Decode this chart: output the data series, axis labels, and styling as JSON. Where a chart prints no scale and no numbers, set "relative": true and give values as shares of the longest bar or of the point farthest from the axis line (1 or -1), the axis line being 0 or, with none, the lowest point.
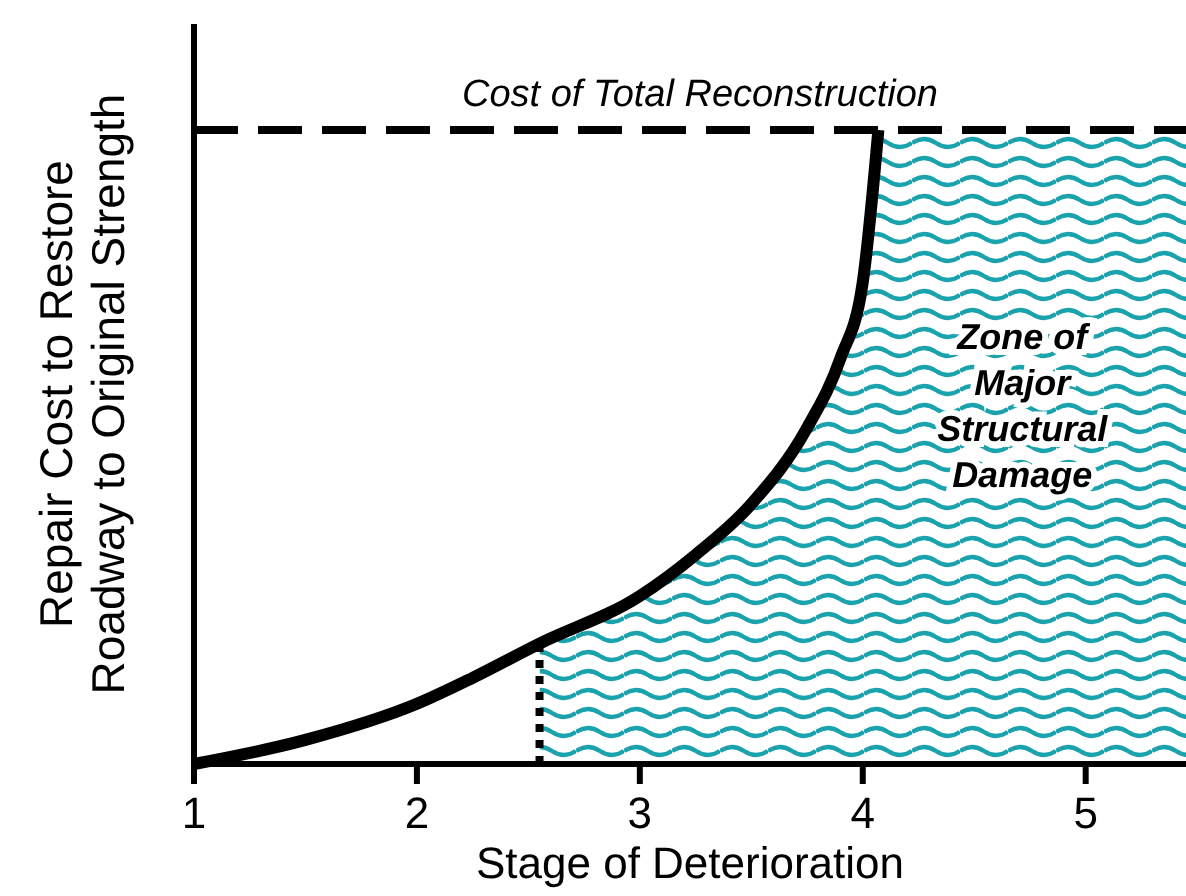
{
  "chart_data": {
    "type": "line",
    "relative": true,
    "xlabel": "Stage of Deterioration",
    "ylabel": "Repair Cost to Restore\nRoadway to Original Strength",
    "x": [
      1,
      1.5,
      2,
      2.25,
      2.55,
      3,
      3.25,
      3.5,
      3.75,
      3.9,
      4,
      4.07
    ],
    "series": [
      {
        "color": "#000000",
        "values": [
          0,
          0.038,
          0.095,
          0.136,
          0.19,
          0.265,
          0.33,
          0.41,
          0.53,
          0.64,
          0.76,
          1
        ]
      }
    ],
    "xlim": [
      1,
      5.45
    ],
    "xticks": [
      1,
      2,
      3,
      4,
      5
    ],
    "line_style": "solid",
    "ref_lines": [
      {
        "axis": "y",
        "value": 1,
        "label": "Cost of Total Reconstruction",
        "color": "#000000",
        "line_style": "dashed"
      },
      {
        "axis": "x",
        "value": 2.55,
        "color": "#000000",
        "line_style": "dotted"
      }
    ],
    "bands": [
      {
        "axis": "x",
        "from": 2.55,
        "to": 5.45,
        "label": "Zone of\nMajor\nStructural\nDamage",
        "color": "#1aa3ad"
      }
    ]
  }
}
